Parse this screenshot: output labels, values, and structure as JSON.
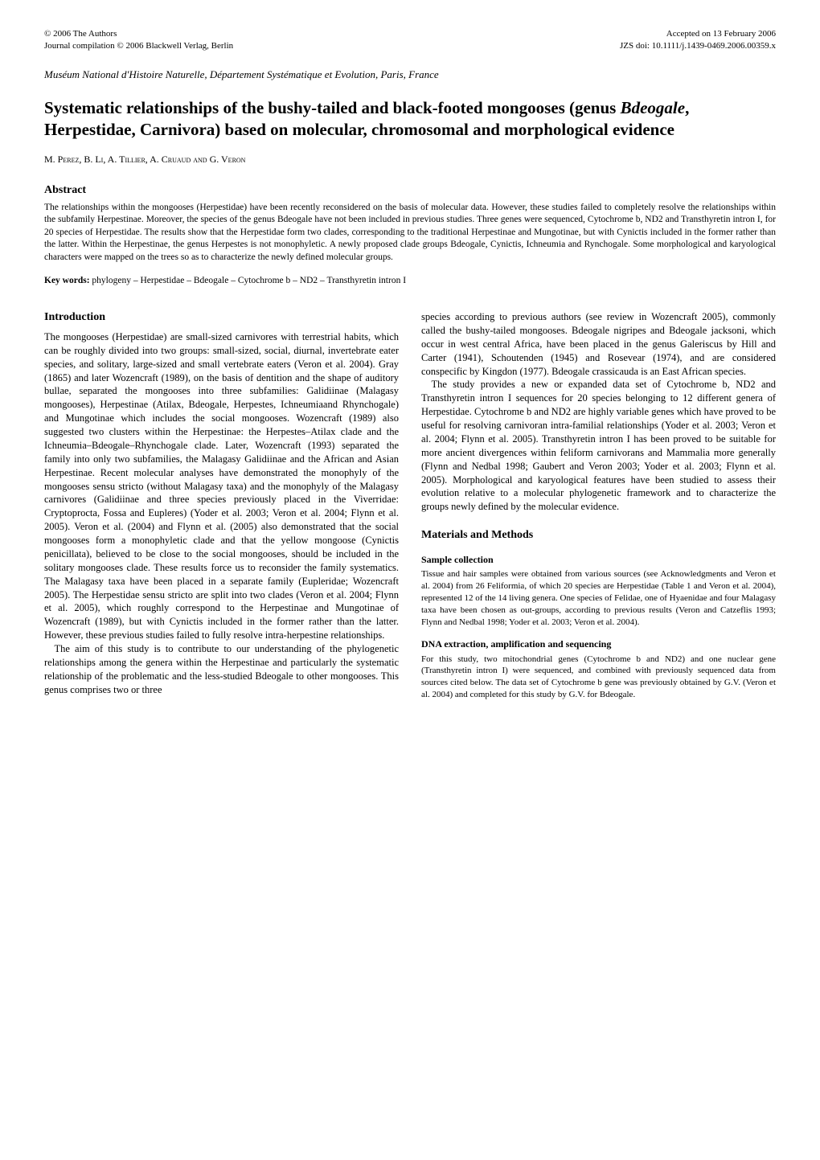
{
  "header": {
    "copyright_line1": "© 2006 The Authors",
    "copyright_line2": "Journal compilation © 2006 Blackwell Verlag, Berlin",
    "accepted": "Accepted on 13 February 2006",
    "doi": "JZS doi: 10.1111/j.1439-0469.2006.00359.x"
  },
  "affiliation": "Muséum National d'Histoire Naturelle, Département Systématique et Evolution, Paris, France",
  "title_part1": "Systematic relationships of the bushy-tailed and black-footed mongooses (genus ",
  "title_genus": "Bdeogale",
  "title_part2": ", Herpestidae, Carnivora) based on molecular, chromosomal and morphological evidence",
  "authors": "M. Perez, B. Li, A. Tillier, A. Cruaud and G. Veron",
  "abstract_heading": "Abstract",
  "abstract_text": "The relationships within the mongooses (Herpestidae) have been recently reconsidered on the basis of molecular data. However, these studies failed to completely resolve the relationships within the subfamily Herpestinae. Moreover, the species of the genus Bdeogale have not been included in previous studies. Three genes were sequenced, Cytochrome b, ND2 and Transthyretin intron I, for 20 species of Herpestidae. The results show that the Herpestidae form two clades, corresponding to the traditional Herpestinae and Mungotinae, but with Cynictis included in the former rather than the latter. Within the Herpestinae, the genus Herpestes is not monophyletic. A newly proposed clade groups Bdeogale, Cynictis, Ichneumia and Rynchogale. Some morphological and karyological characters were mapped on the trees so as to characterize the newly defined molecular groups.",
  "keywords_label": "Key words:",
  "keywords_text": " phylogeny – Herpestidae – Bdeogale – Cytochrome b – ND2 – Transthyretin intron I",
  "intro_heading": "Introduction",
  "col1_p1": "The mongooses (Herpestidae) are small-sized carnivores with terrestrial habits, which can be roughly divided into two groups: small-sized, social, diurnal, invertebrate eater species, and solitary, large-sized and small vertebrate eaters (Veron et al. 2004). Gray (1865) and later Wozencraft (1989), on the basis of dentition and the shape of auditory bullae, separated the mongooses into three subfamilies: Galidiinae (Malagasy mongooses), Herpestinae (Atilax, Bdeogale, Herpestes, Ichneumiaand Rhynchogale) and Mungotinae which includes the social mongooses. Wozencraft (1989) also suggested two clusters within the Herpestinae: the Herpestes–Atilax clade and the Ichneumia–Bdeogale–Rhynchogale clade. Later, Wozencraft (1993) separated the family into only two subfamilies, the Malagasy Galidiinae and the African and Asian Herpestinae. Recent molecular analyses have demonstrated the monophyly of the mongooses sensu stricto (without Malagasy taxa) and the monophyly of the Malagasy carnivores (Galidiinae and three species previously placed in the Viverridae: Cryptoprocta, Fossa and Eupleres) (Yoder et al. 2003; Veron et al. 2004; Flynn et al. 2005). Veron et al. (2004) and Flynn et al. (2005) also demonstrated that the social mongooses form a monophyletic clade and that the yellow mongoose (Cynictis penicillata), believed to be close to the social mongooses, should be included in the solitary mongooses clade. These results force us to reconsider the family systematics. The Malagasy taxa have been placed in a separate family (Eupleridae; Wozencraft 2005). The Herpestidae sensu stricto are split into two clades (Veron et al. 2004; Flynn et al. 2005), which roughly correspond to the Herpestinae and Mungotinae of Wozencraft (1989), but with Cynictis included in the former rather than the latter. However, these previous studies failed to fully resolve intra-herpestine relationships.",
  "col1_p2": "The aim of this study is to contribute to our understanding of the phylogenetic relationships among the genera within the Herpestinae and particularly the systematic relationship of the problematic and the less-studied Bdeogale to other mongooses. This genus comprises two or three",
  "col2_p1": "species according to previous authors (see review in Wozencraft 2005), commonly called the bushy-tailed mongooses. Bdeogale nigripes and Bdeogale jacksoni, which occur in west central Africa, have been placed in the genus Galeriscus by Hill and Carter (1941), Schoutenden (1945) and Rosevear (1974), and are considered conspecific by Kingdon (1977). Bdeogale crassicauda is an East African species.",
  "col2_p2": "The study provides a new or expanded data set of Cytochrome b, ND2 and Transthyretin intron I sequences for 20 species belonging to 12 different genera of Herpestidae. Cytochrome b and ND2 are highly variable genes which have proved to be useful for resolving carnivoran intra-familial relationships (Yoder et al. 2003; Veron et al. 2004; Flynn et al. 2005). Transthyretin intron I has been proved to be suitable for more ancient divergences within feliform carnivorans and Mammalia more generally (Flynn and Nedbal 1998; Gaubert and Veron 2003; Yoder et al. 2003; Flynn et al. 2005). Morphological and karyological features have been studied to assess their evolution relative to a molecular phylogenetic framework and to characterize the groups newly defined by the molecular evidence.",
  "mm_heading": "Materials and Methods",
  "sample_heading": "Sample collection",
  "sample_text": "Tissue and hair samples were obtained from various sources (see Acknowledgments and Veron et al. 2004) from 26 Feliformia, of which 20 species are Herpestidae (Table 1 and Veron et al. 2004), represented 12 of the 14 living genera. One species of Felidae, one of Hyaenidae and four Malagasy taxa have been chosen as out-groups, according to previous results (Veron and Catzeflis 1993; Flynn and Nedbal 1998; Yoder et al. 2003; Veron et al. 2004).",
  "dna_heading": "DNA extraction, amplification and sequencing",
  "dna_text": "For this study, two mitochondrial genes (Cytochrome b and ND2) and one nuclear gene (Transthyretin intron I) were sequenced, and combined with previously sequenced data from sources cited below. The data set of Cytochrome b gene was previously obtained by G.V. (Veron et al. 2004) and completed for this study by G.V. for Bdeogale."
}
